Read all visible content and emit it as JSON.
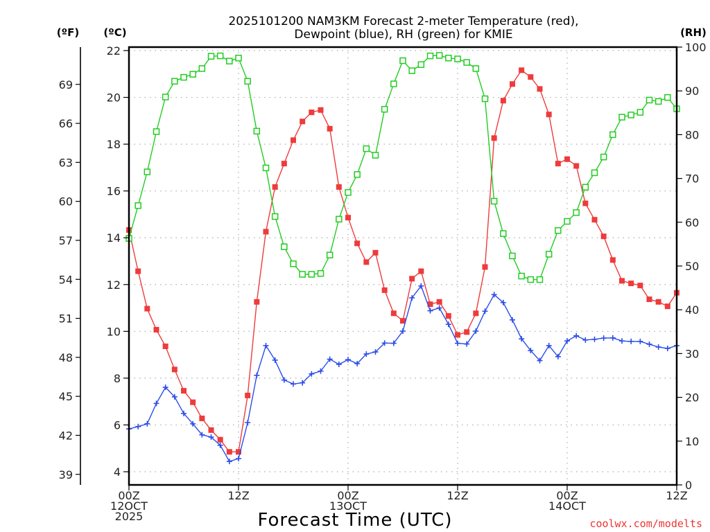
{
  "chart_data": {
    "type": "line",
    "title": [
      "2025101200 NAM3KM Forecast 2-meter Temperature (red),",
      "Dewpoint (blue), RH (green) for KMIE"
    ],
    "xlabel": "Forecast Time (UTC)",
    "credit": "coolwx.com/modelts",
    "x_hours": [
      0,
      1,
      2,
      3,
      4,
      5,
      6,
      7,
      8,
      9,
      10,
      11,
      12,
      13,
      14,
      15,
      16,
      17,
      18,
      19,
      20,
      21,
      22,
      23,
      24,
      25,
      26,
      27,
      28,
      29,
      30,
      31,
      32,
      33,
      34,
      35,
      36,
      37,
      38,
      39,
      40,
      41,
      42,
      43,
      44,
      45,
      46,
      47,
      48,
      49,
      50,
      51,
      52,
      53,
      54,
      55,
      56,
      57,
      58,
      59,
      60
    ],
    "xlim": [
      0,
      60
    ],
    "x_ticks": [
      {
        "hour": 0,
        "lines": [
          "00Z",
          "12OCT",
          "2025"
        ]
      },
      {
        "hour": 12,
        "lines": [
          "12Z"
        ]
      },
      {
        "hour": 24,
        "lines": [
          "00Z",
          "13OCT"
        ]
      },
      {
        "hour": 36,
        "lines": [
          "12Z"
        ]
      },
      {
        "hour": 48,
        "lines": [
          "00Z",
          "14OCT"
        ]
      },
      {
        "hour": 60,
        "lines": [
          "12Z"
        ]
      }
    ],
    "axes": {
      "left_c": {
        "unit_label": "(ºC)",
        "ylim": [
          3.2,
          22.15
        ],
        "ticks": [
          4,
          6,
          8,
          10,
          12,
          14,
          16,
          18,
          20,
          22
        ]
      },
      "left_f": {
        "unit_label": "(ºF)",
        "ticks": [
          39,
          42,
          45,
          48,
          51,
          54,
          57,
          60,
          63,
          66,
          69
        ]
      },
      "right_rh": {
        "unit_label": "(RH)",
        "ylim": [
          0,
          100
        ],
        "ticks": [
          0,
          10,
          20,
          30,
          40,
          50,
          60,
          70,
          80,
          90,
          100
        ]
      }
    },
    "grid": true,
    "series": [
      {
        "name": "2-meter Temperature",
        "unit": "°C",
        "axis": "left_c",
        "color": "#ee3b3b",
        "marker": "filled-square",
        "values": [
          14.33,
          12.57,
          10.97,
          10.07,
          9.36,
          8.37,
          7.46,
          6.97,
          6.28,
          5.78,
          5.37,
          4.85,
          4.85,
          7.26,
          11.26,
          14.26,
          16.17,
          17.17,
          18.17,
          18.97,
          19.36,
          19.46,
          18.66,
          16.17,
          14.86,
          13.76,
          12.96,
          13.36,
          11.76,
          10.77,
          10.45,
          12.25,
          12.57,
          11.16,
          11.26,
          10.66,
          9.85,
          9.97,
          10.77,
          12.75,
          18.26,
          19.86,
          20.57,
          21.16,
          20.87,
          20.36,
          19.27,
          17.17,
          17.36,
          17.07,
          15.47,
          14.77,
          14.06,
          13.05,
          12.16,
          12.05,
          11.96,
          11.37,
          11.26,
          11.07,
          11.65
        ]
      },
      {
        "name": "Dewpoint",
        "unit": "°C",
        "axis": "left_c",
        "color": "#2b4ce8",
        "marker": "plus",
        "values": [
          5.83,
          5.93,
          6.05,
          6.92,
          7.61,
          7.2,
          6.49,
          6.05,
          5.58,
          5.48,
          5.13,
          4.44,
          4.56,
          6.1,
          8.12,
          9.39,
          8.77,
          7.92,
          7.75,
          7.8,
          8.18,
          8.3,
          8.81,
          8.59,
          8.79,
          8.62,
          9.03,
          9.12,
          9.5,
          9.49,
          10.01,
          11.43,
          11.94,
          10.88,
          11.0,
          10.3,
          9.49,
          9.46,
          10.01,
          10.86,
          11.57,
          11.23,
          10.49,
          9.68,
          9.18,
          8.75,
          9.39,
          8.92,
          9.59,
          9.81,
          9.63,
          9.66,
          9.71,
          9.72,
          9.59,
          9.57,
          9.57,
          9.45,
          9.33,
          9.27,
          9.39
        ]
      },
      {
        "name": "RH",
        "unit": "%",
        "axis": "right_rh",
        "color": "#22cc22",
        "marker": "open-square",
        "values": [
          56.3,
          63.8,
          71.5,
          80.7,
          88.6,
          92.2,
          93.1,
          93.8,
          95.1,
          97.9,
          98.0,
          96.8,
          97.5,
          92.2,
          80.8,
          72.4,
          61.3,
          54.4,
          50.5,
          48.1,
          48.1,
          48.3,
          52.5,
          60.7,
          66.8,
          70.9,
          76.8,
          75.3,
          85.8,
          91.6,
          96.9,
          94.6,
          96.0,
          98.0,
          98.1,
          97.5,
          97.3,
          96.5,
          95.1,
          88.2,
          64.8,
          57.4,
          52.3,
          47.7,
          46.9,
          46.9,
          52.7,
          58.1,
          60.2,
          62.2,
          68.0,
          71.3,
          74.9,
          80.0,
          84.0,
          84.5,
          85.1,
          87.9,
          87.6,
          88.5,
          85.9
        ]
      }
    ]
  }
}
